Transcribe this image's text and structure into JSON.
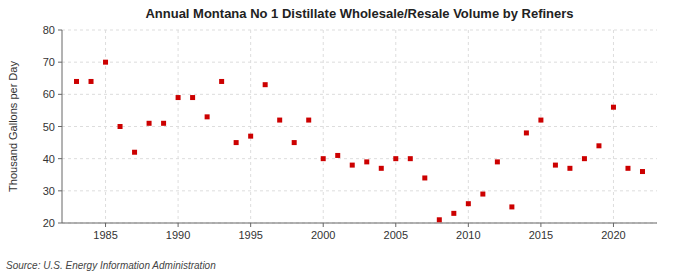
{
  "chart_data": {
    "type": "scatter",
    "title": "Annual Montana No 1 Distillate Wholesale/Resale Volume by Refiners",
    "y_label": "Thousand Gallons per Day",
    "source": "Source: U.S. Energy Information Administration",
    "x": [
      1983,
      1984,
      1985,
      1986,
      1987,
      1988,
      1989,
      1990,
      1991,
      1992,
      1993,
      1994,
      1995,
      1996,
      1997,
      1998,
      1999,
      2000,
      2001,
      2002,
      2003,
      2004,
      2005,
      2006,
      2007,
      2008,
      2009,
      2010,
      2011,
      2012,
      2013,
      2014,
      2015,
      2016,
      2017,
      2018,
      2019,
      2020,
      2021,
      2022
    ],
    "values": [
      64,
      64,
      70,
      50,
      42,
      51,
      51,
      59,
      59,
      53,
      64,
      45,
      47,
      63,
      52,
      45,
      52,
      40,
      41,
      38,
      39,
      37,
      40,
      40,
      34,
      21,
      23,
      26,
      29,
      39,
      25,
      48,
      52,
      38,
      37,
      40,
      44,
      56,
      37,
      36
    ],
    "color": "#cc0000",
    "marker": "square",
    "xlim": [
      1982,
      2023
    ],
    "ylim": [
      20,
      80
    ],
    "xticks": [
      1985,
      1990,
      1995,
      2000,
      2005,
      2010,
      2015,
      2020
    ],
    "yticks": [
      20,
      30,
      40,
      50,
      60,
      70,
      80
    ],
    "grid": true
  }
}
